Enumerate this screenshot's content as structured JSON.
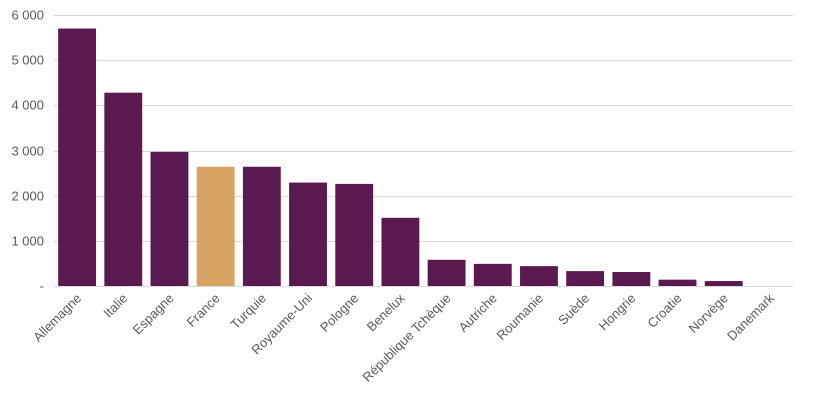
{
  "chart_data": {
    "type": "bar",
    "title": "",
    "xlabel": "",
    "ylabel": "",
    "categories": [
      "Allemagne",
      "Italie",
      "Espagne",
      "France",
      "Turquie",
      "Royaume-Uni",
      "Pologne",
      "Benelux",
      "République Tchèque",
      "Autriche",
      "Roumanie",
      "Suède",
      "Hongrie",
      "Croatie",
      "Norvège",
      "Danemark"
    ],
    "values": [
      5700,
      4280,
      2970,
      2640,
      2640,
      2290,
      2260,
      1510,
      580,
      490,
      440,
      330,
      310,
      140,
      110,
      0
    ],
    "highlight_category": "France",
    "ylim": [
      0,
      6000
    ],
    "yticks": [
      0,
      1000,
      2000,
      3000,
      4000,
      5000,
      6000
    ],
    "ytick_labels": [
      "-",
      "1 000",
      "2 000",
      "3 000",
      "4 000",
      "5 000",
      "6 000"
    ],
    "grid": true,
    "legend": "none",
    "colors": {
      "bar": "#5b1a4f",
      "highlight": "#d7a262",
      "grid": "#d9d9d9",
      "text": "#595959"
    }
  }
}
